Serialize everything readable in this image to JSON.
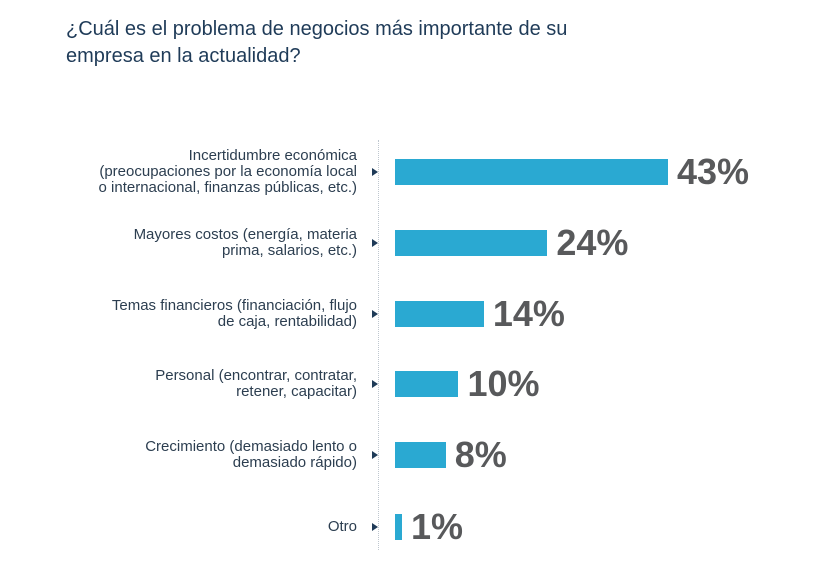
{
  "title": {
    "line1": "¿Cuál es el problema de negocios más importante de su",
    "line2": "empresa en la actualidad?"
  },
  "colors": {
    "bar": "#2aa9d2",
    "value_text": "#58595b",
    "title_text": "#1f3b58"
  },
  "chart_data": {
    "type": "bar",
    "orientation": "horizontal",
    "title": "¿Cuál es el problema de negocios más importante de su empresa en la actualidad?",
    "xlabel": "",
    "ylabel": "",
    "xlim": [
      0,
      43
    ],
    "categories": [
      [
        "Incertidumbre económica",
        "(preocupaciones por la economía local",
        "o internacional, finanzas públicas, etc.)"
      ],
      [
        "Mayores costos (energía, materia",
        "prima, salarios, etc.)"
      ],
      [
        "Temas financieros (financiación, flujo",
        "de caja, rentabilidad)"
      ],
      [
        "Personal (encontrar, contratar,",
        "retener, capacitar)"
      ],
      [
        "Crecimiento (demasiado lento o",
        "demasiado rápido)"
      ],
      [
        "Otro"
      ]
    ],
    "values": [
      43,
      24,
      14,
      10,
      8,
      1
    ],
    "value_labels": [
      "43%",
      "24%",
      "14%",
      "10%",
      "8%",
      "1%"
    ]
  }
}
